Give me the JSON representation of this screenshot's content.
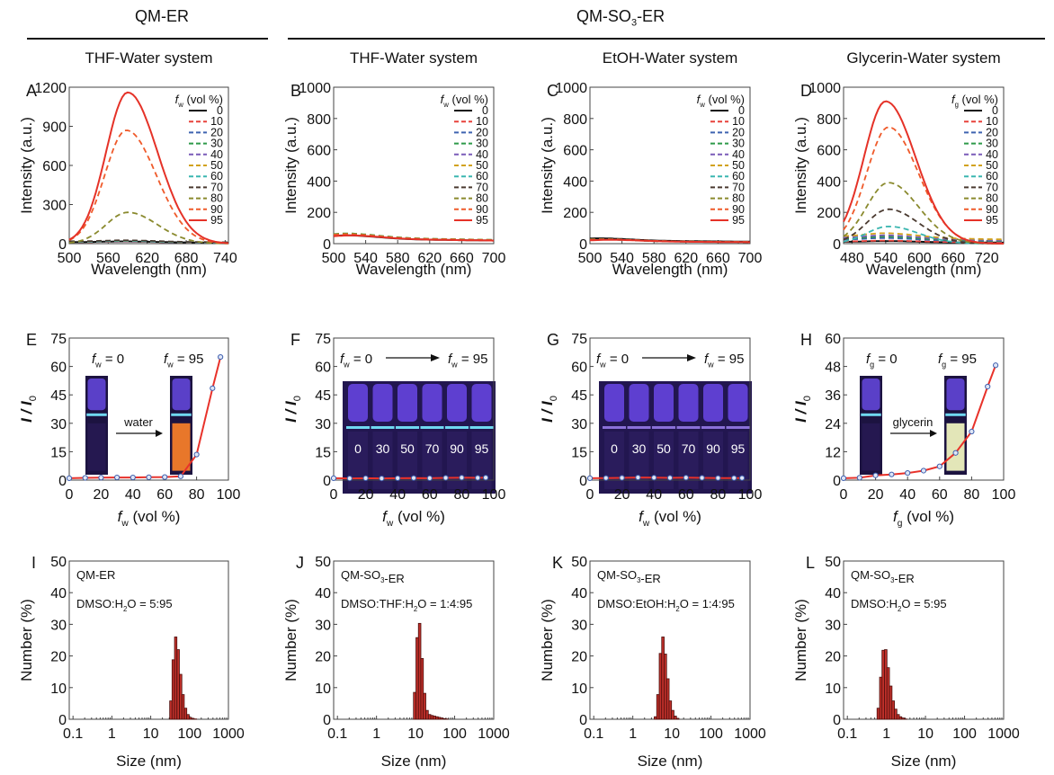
{
  "figure": {
    "group_headers": [
      {
        "label": "QM-ER",
        "sub": ""
      },
      {
        "label": "QM-SO",
        "sub": "3",
        "suffix": "-ER"
      }
    ],
    "legend_values": [
      "0",
      "10",
      "20",
      "30",
      "40",
      "50",
      "60",
      "70",
      "80",
      "90",
      "95"
    ],
    "legend_colors": [
      "#111111",
      "#e8423c",
      "#3e63b0",
      "#2e9a4a",
      "#7a5cb8",
      "#d2a21d",
      "#3bb6b0",
      "#4a3a30",
      "#8a8a2e",
      "#ef5a2a",
      "#e53228"
    ]
  },
  "chart_data": [
    {
      "id": "A",
      "type": "line",
      "title": "THF-Water system",
      "xlabel": "Wavelength (nm)",
      "ylabel": "Intensity (a.u.)",
      "xlim": [
        500,
        745
      ],
      "ylim": [
        0,
        1200
      ],
      "xticks": [
        500,
        560,
        620,
        680,
        740
      ],
      "yticks": [
        0,
        300,
        600,
        900,
        1200
      ],
      "legend_title": "f_w (vol %)",
      "legend_position": "top-right",
      "series": [
        {
          "name": "0",
          "peak_x": 590,
          "peak_y": 20
        },
        {
          "name": "10",
          "peak_x": 590,
          "peak_y": 18
        },
        {
          "name": "20",
          "peak_x": 590,
          "peak_y": 20
        },
        {
          "name": "30",
          "peak_x": 590,
          "peak_y": 22
        },
        {
          "name": "40",
          "peak_x": 590,
          "peak_y": 22
        },
        {
          "name": "50",
          "peak_x": 590,
          "peak_y": 24
        },
        {
          "name": "60",
          "peak_x": 590,
          "peak_y": 25
        },
        {
          "name": "70",
          "peak_x": 590,
          "peak_y": 30
        },
        {
          "name": "80",
          "peak_x": 590,
          "peak_y": 240
        },
        {
          "name": "90",
          "peak_x": 588,
          "peak_y": 870
        },
        {
          "name": "95",
          "peak_x": 590,
          "peak_y": 1160
        }
      ]
    },
    {
      "id": "B",
      "type": "line",
      "title": "THF-Water system",
      "xlabel": "Wavelength (nm)",
      "ylabel": "Intensity (a.u.)",
      "xlim": [
        500,
        700
      ],
      "ylim": [
        0,
        1000
      ],
      "xticks": [
        500,
        540,
        580,
        620,
        660,
        700
      ],
      "yticks": [
        0,
        200,
        400,
        600,
        800,
        1000
      ],
      "legend_title": "f_w (vol %)",
      "legend_position": "top-right",
      "series": [
        {
          "name": "0",
          "peak_x": 520,
          "peak_y": 55
        },
        {
          "name": "10",
          "peak_x": 520,
          "peak_y": 60
        },
        {
          "name": "20",
          "peak_x": 520,
          "peak_y": 62
        },
        {
          "name": "30",
          "peak_x": 520,
          "peak_y": 68
        },
        {
          "name": "40",
          "peak_x": 520,
          "peak_y": 60
        },
        {
          "name": "50",
          "peak_x": 520,
          "peak_y": 65
        },
        {
          "name": "60",
          "peak_x": 520,
          "peak_y": 60
        },
        {
          "name": "70",
          "peak_x": 520,
          "peak_y": 58
        },
        {
          "name": "80",
          "peak_x": 520,
          "peak_y": 66
        },
        {
          "name": "90",
          "peak_x": 520,
          "peak_y": 62
        },
        {
          "name": "95",
          "peak_x": 525,
          "peak_y": 55
        }
      ]
    },
    {
      "id": "C",
      "type": "line",
      "title": "EtOH-Water system",
      "xlabel": "Wavelength (nm)",
      "ylabel": "Intensity (a.u.)",
      "xlim": [
        500,
        700
      ],
      "ylim": [
        0,
        1000
      ],
      "xticks": [
        500,
        540,
        580,
        620,
        660,
        700
      ],
      "yticks": [
        0,
        200,
        400,
        600,
        800,
        1000
      ],
      "legend_title": "f_w (vol %)",
      "legend_position": "top-right",
      "series": [
        {
          "name": "0",
          "peak_x": 515,
          "peak_y": 35
        },
        {
          "name": "10",
          "peak_x": 520,
          "peak_y": 28
        },
        {
          "name": "20",
          "peak_x": 520,
          "peak_y": 28
        },
        {
          "name": "30",
          "peak_x": 520,
          "peak_y": 28
        },
        {
          "name": "40",
          "peak_x": 520,
          "peak_y": 28
        },
        {
          "name": "50",
          "peak_x": 520,
          "peak_y": 28
        },
        {
          "name": "60",
          "peak_x": 520,
          "peak_y": 28
        },
        {
          "name": "70",
          "peak_x": 520,
          "peak_y": 30
        },
        {
          "name": "80",
          "peak_x": 520,
          "peak_y": 30
        },
        {
          "name": "90",
          "peak_x": 525,
          "peak_y": 28
        },
        {
          "name": "95",
          "peak_x": 530,
          "peak_y": 26
        }
      ]
    },
    {
      "id": "D",
      "type": "line",
      "title": "Glycerin-Water system",
      "xlabel": "Wavelength (nm)",
      "ylabel": "Intensity (a.u.)",
      "xlim": [
        465,
        750
      ],
      "ylim": [
        0,
        1000
      ],
      "xticks": [
        480,
        540,
        600,
        660,
        720
      ],
      "yticks": [
        0,
        200,
        400,
        600,
        800,
        1000
      ],
      "legend_title": "f_g (vol %)",
      "legend_position": "top-right",
      "series": [
        {
          "name": "0",
          "peak_x": 545,
          "peak_y": 18
        },
        {
          "name": "10",
          "peak_x": 545,
          "peak_y": 22
        },
        {
          "name": "20",
          "peak_x": 545,
          "peak_y": 40
        },
        {
          "name": "30",
          "peak_x": 545,
          "peak_y": 50
        },
        {
          "name": "40",
          "peak_x": 545,
          "peak_y": 60
        },
        {
          "name": "50",
          "peak_x": 545,
          "peak_y": 75
        },
        {
          "name": "60",
          "peak_x": 545,
          "peak_y": 110
        },
        {
          "name": "70",
          "peak_x": 545,
          "peak_y": 220
        },
        {
          "name": "80",
          "peak_x": 545,
          "peak_y": 390
        },
        {
          "name": "90",
          "peak_x": 545,
          "peak_y": 745
        },
        {
          "name": "95",
          "peak_x": 540,
          "peak_y": 910
        }
      ]
    },
    {
      "id": "E",
      "type": "line",
      "xlabel": "f_w (vol %)",
      "ylabel": "I / I_0",
      "xlim": [
        0,
        100
      ],
      "ylim": [
        0,
        75
      ],
      "xticks": [
        0,
        20,
        40,
        60,
        80,
        100
      ],
      "yticks": [
        0,
        15,
        30,
        45,
        60,
        75
      ],
      "x": [
        0,
        10,
        20,
        30,
        40,
        50,
        60,
        70,
        80,
        90,
        95
      ],
      "values": [
        1,
        1.2,
        1.3,
        1.4,
        1.4,
        1.5,
        1.6,
        2,
        13.5,
        48.5,
        65
      ],
      "inset": {
        "type": "two-vials",
        "left_label": "f_w = 0",
        "right_label": "f_w = 95",
        "arrow_label": "water",
        "right_color": "#e8772a"
      }
    },
    {
      "id": "F",
      "type": "line",
      "xlabel": "f_w (vol %)",
      "ylabel": "I / I_0",
      "xlim": [
        0,
        100
      ],
      "ylim": [
        0,
        75
      ],
      "xticks": [
        0,
        20,
        40,
        60,
        80,
        100
      ],
      "yticks": [
        0,
        15,
        30,
        45,
        60,
        75
      ],
      "x": [
        0,
        10,
        20,
        30,
        40,
        50,
        60,
        70,
        80,
        90,
        95
      ],
      "values": [
        1,
        0.9,
        1,
        0.9,
        1,
        1.1,
        1,
        1.2,
        1.3,
        1.2,
        1.3
      ],
      "inset": {
        "type": "vial-row",
        "left_label": "f_w = 0",
        "right_label": "f_w = 95",
        "vial_labels": [
          "0",
          "30",
          "50",
          "70",
          "90",
          "95"
        ]
      }
    },
    {
      "id": "G",
      "type": "line",
      "xlabel": "f_w (vol %)",
      "ylabel": "I / I_0",
      "xlim": [
        0,
        100
      ],
      "ylim": [
        0,
        75
      ],
      "xticks": [
        0,
        20,
        40,
        60,
        80,
        100
      ],
      "yticks": [
        0,
        15,
        30,
        45,
        60,
        75
      ],
      "x": [
        0,
        10,
        20,
        30,
        40,
        50,
        60,
        70,
        80,
        90,
        95
      ],
      "values": [
        1,
        1.1,
        1.2,
        1.4,
        1.3,
        1.2,
        1.3,
        1.2,
        1.1,
        1.1,
        1.1
      ],
      "inset": {
        "type": "vial-row",
        "left_label": "f_w = 0",
        "right_label": "f_w = 95",
        "vial_labels": [
          "0",
          "30",
          "50",
          "70",
          "90",
          "95"
        ]
      }
    },
    {
      "id": "H",
      "type": "line",
      "xlabel": "f_g (vol %)",
      "ylabel": "I / I_0",
      "xlim": [
        0,
        100
      ],
      "ylim": [
        0,
        60
      ],
      "xticks": [
        0,
        20,
        40,
        60,
        80,
        100
      ],
      "yticks": [
        0,
        12,
        24,
        36,
        48,
        60
      ],
      "x": [
        0,
        10,
        20,
        30,
        40,
        50,
        60,
        70,
        80,
        90,
        95
      ],
      "values": [
        0.8,
        1,
        2,
        2.4,
        3,
        4,
        5.8,
        11.5,
        20.5,
        39.5,
        48.5
      ],
      "inset": {
        "type": "two-vials",
        "left_label": "f_g = 0",
        "right_label": "f_g = 95",
        "arrow_label": "glycerin",
        "right_color": "#e3e6b8"
      }
    },
    {
      "id": "I",
      "type": "bar",
      "xlabel": "Size (nm)",
      "ylabel": "Number (%)",
      "xscale": "log",
      "xlim": [
        0.08,
        1000
      ],
      "ylim": [
        0,
        50
      ],
      "xticks": [
        "0.1",
        "1",
        "10",
        "100",
        "1000"
      ],
      "yticks": [
        0,
        10,
        20,
        30,
        40,
        50
      ],
      "annotation_sample": "QM-ER",
      "annotation_ratio": "DMSO:H2O = 5:95",
      "bins": [
        33,
        38,
        44,
        51,
        59,
        68,
        79,
        91,
        105,
        122,
        141
      ],
      "values": [
        5.8,
        18.8,
        26,
        22,
        14.2,
        7.8,
        3.5,
        1.5,
        0.6,
        0.3,
        0.1
      ]
    },
    {
      "id": "J",
      "type": "bar",
      "xlabel": "Size (nm)",
      "ylabel": "Number (%)",
      "xscale": "log",
      "xlim": [
        0.08,
        1000
      ],
      "ylim": [
        0,
        50
      ],
      "xticks": [
        "0.1",
        "1",
        "10",
        "100",
        "1000"
      ],
      "yticks": [
        0,
        10,
        20,
        30,
        40,
        50
      ],
      "annotation_sample": "QM-SO3-ER",
      "annotation_ratio": "DMSO:THF:H2O = 1:4:95",
      "bins": [
        9.5,
        11,
        12.7,
        14.7,
        17,
        19.7,
        22.8,
        26.4,
        30.5,
        35.3,
        40.8,
        47.2,
        54.6,
        63.2
      ],
      "values": [
        8.5,
        25.8,
        30.3,
        19.2,
        8.2,
        2.8,
        1.5,
        1.2,
        1,
        0.8,
        0.6,
        0.4,
        0.2,
        0.1
      ]
    },
    {
      "id": "K",
      "type": "bar",
      "xlabel": "Size (nm)",
      "ylabel": "Number (%)",
      "xscale": "log",
      "xlim": [
        0.08,
        1000
      ],
      "ylim": [
        0,
        50
      ],
      "xticks": [
        "0.1",
        "1",
        "10",
        "100",
        "1000"
      ],
      "yticks": [
        0,
        10,
        20,
        30,
        40,
        50
      ],
      "annotation_sample": "QM-SO3-ER",
      "annotation_ratio": "DMSO:EtOH:H2O = 1:4:95",
      "bins": [
        3.8,
        4.4,
        5.1,
        5.9,
        6.8,
        7.9,
        9.1,
        10.5,
        12.2,
        14.1
      ],
      "values": [
        0.8,
        7.8,
        20.8,
        26,
        20.6,
        12.8,
        5.8,
        2.8,
        1,
        0.3
      ]
    },
    {
      "id": "L",
      "type": "bar",
      "xlabel": "Size (nm)",
      "ylabel": "Number (%)",
      "xscale": "log",
      "xlim": [
        0.08,
        1000
      ],
      "ylim": [
        0,
        50
      ],
      "xticks": [
        "0.1",
        "1",
        "10",
        "100",
        "1000"
      ],
      "yticks": [
        0,
        10,
        20,
        30,
        40,
        50
      ],
      "annotation_sample": "QM-SO3-ER",
      "annotation_ratio": "DMSO:H2O = 5:95",
      "bins": [
        0.62,
        0.72,
        0.83,
        0.96,
        1.11,
        1.29,
        1.49,
        1.72,
        1.99,
        2.3,
        2.66,
        3.08
      ],
      "values": [
        3.5,
        13.3,
        21.8,
        22,
        16.3,
        10.5,
        5.8,
        3.2,
        1.5,
        0.8,
        0.4,
        0.1
      ]
    }
  ]
}
